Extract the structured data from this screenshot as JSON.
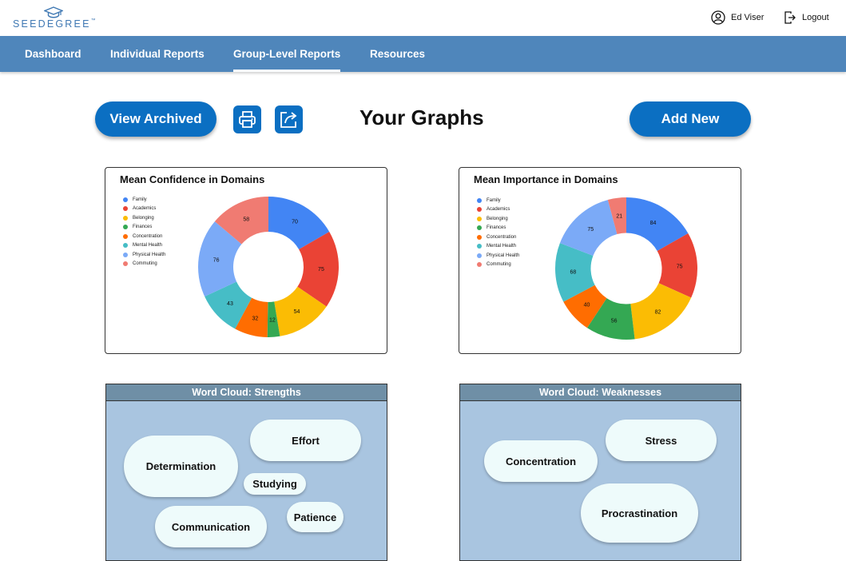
{
  "header": {
    "logo_text": "SEEDEGREE",
    "logo_tm": "™",
    "user_name": "Ed Viser",
    "logout_label": "Logout"
  },
  "nav": {
    "items": [
      {
        "label": "Dashboard",
        "active": false
      },
      {
        "label": "Individual Reports",
        "active": false
      },
      {
        "label": "Group-Level Reports",
        "active": true
      },
      {
        "label": "Resources",
        "active": false
      }
    ]
  },
  "toolbar": {
    "view_archived_label": "View Archived",
    "print_icon": "print-icon",
    "share_icon": "share-icon",
    "title": "Your Graphs",
    "add_new_label": "Add New"
  },
  "chart_data": [
    {
      "type": "pie",
      "title": "Mean Confidence in Domains",
      "categories": [
        "Family",
        "Academics",
        "Belonging",
        "Finances",
        "Concentration",
        "Mental Health",
        "Physical Health",
        "Commuting"
      ],
      "values": [
        70,
        75,
        54,
        12,
        32,
        43,
        76,
        58
      ],
      "colors": [
        "#4285f4",
        "#ea4335",
        "#fbbc04",
        "#34a853",
        "#ff6d01",
        "#46bdc6",
        "#7baaf7",
        "#f07b72"
      ],
      "hole": 0.5,
      "legend": "left"
    },
    {
      "type": "pie",
      "title": "Mean Importance in Domains",
      "categories": [
        "Family",
        "Academics",
        "Belonging",
        "Finances",
        "Concentration",
        "Mental Health",
        "Physical Health",
        "Commuting"
      ],
      "values": [
        84,
        75,
        82,
        56,
        40,
        68,
        75,
        21
      ],
      "colors": [
        "#4285f4",
        "#ea4335",
        "#fbbc04",
        "#34a853",
        "#ff6d01",
        "#46bdc6",
        "#7baaf7",
        "#f07b72"
      ],
      "hole": 0.5,
      "legend": "left"
    }
  ],
  "wordclouds": [
    {
      "title": "Word Cloud: Strengths",
      "words": [
        "Effort",
        "Determination",
        "Studying",
        "Patience",
        "Communication"
      ]
    },
    {
      "title": "Word Cloud: Weaknesses",
      "words": [
        "Stress",
        "Concentration",
        "Procrastination"
      ]
    }
  ]
}
